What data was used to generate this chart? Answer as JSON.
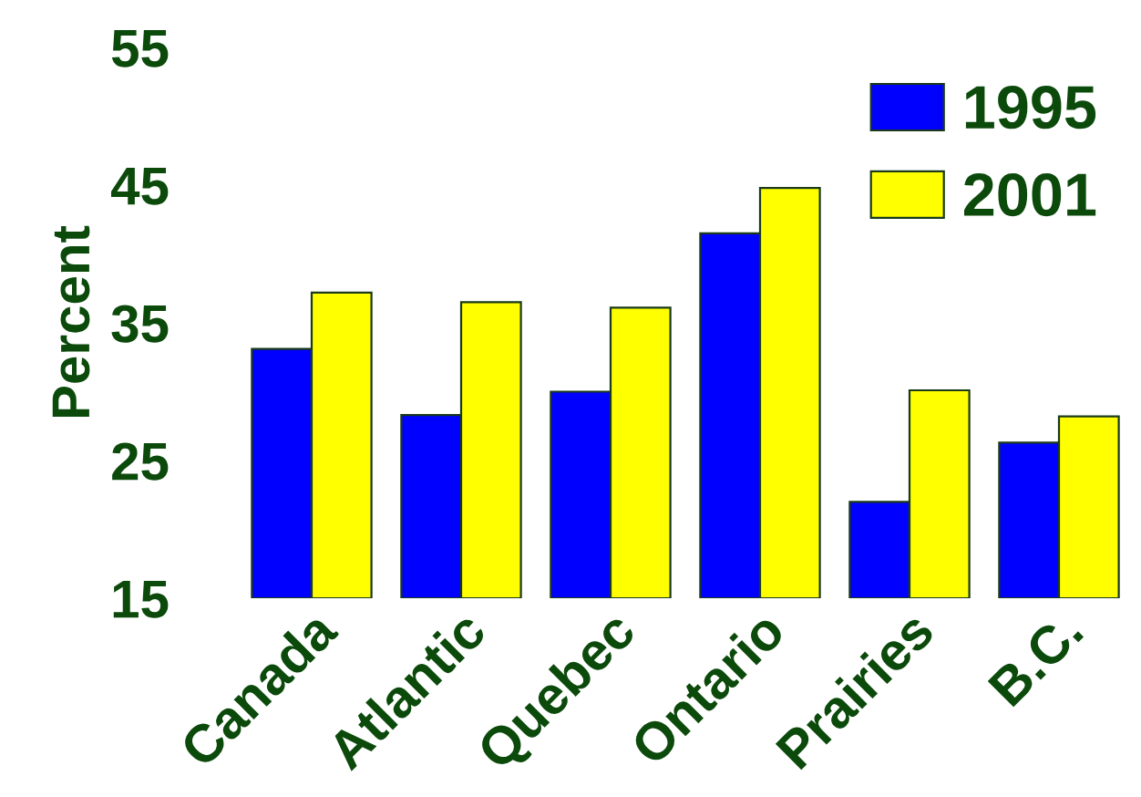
{
  "chart_data": {
    "type": "bar",
    "ylabel": "Percent",
    "categories": [
      "Canada",
      "Atlantic",
      "Quebec",
      "Ontario",
      "Prairies",
      "B.C."
    ],
    "series": [
      {
        "name": "1995",
        "color": "#0000ff",
        "values": [
          33.1,
          28.3,
          30.0,
          41.5,
          22.0,
          26.3
        ]
      },
      {
        "name": "2001",
        "color": "#ffff00",
        "values": [
          37.2,
          36.5,
          36.1,
          44.8,
          30.1,
          28.2
        ]
      }
    ],
    "ylim": [
      15,
      55
    ],
    "yticks": [
      15,
      25,
      35,
      45,
      55
    ],
    "grid": false,
    "legend": "top right"
  }
}
